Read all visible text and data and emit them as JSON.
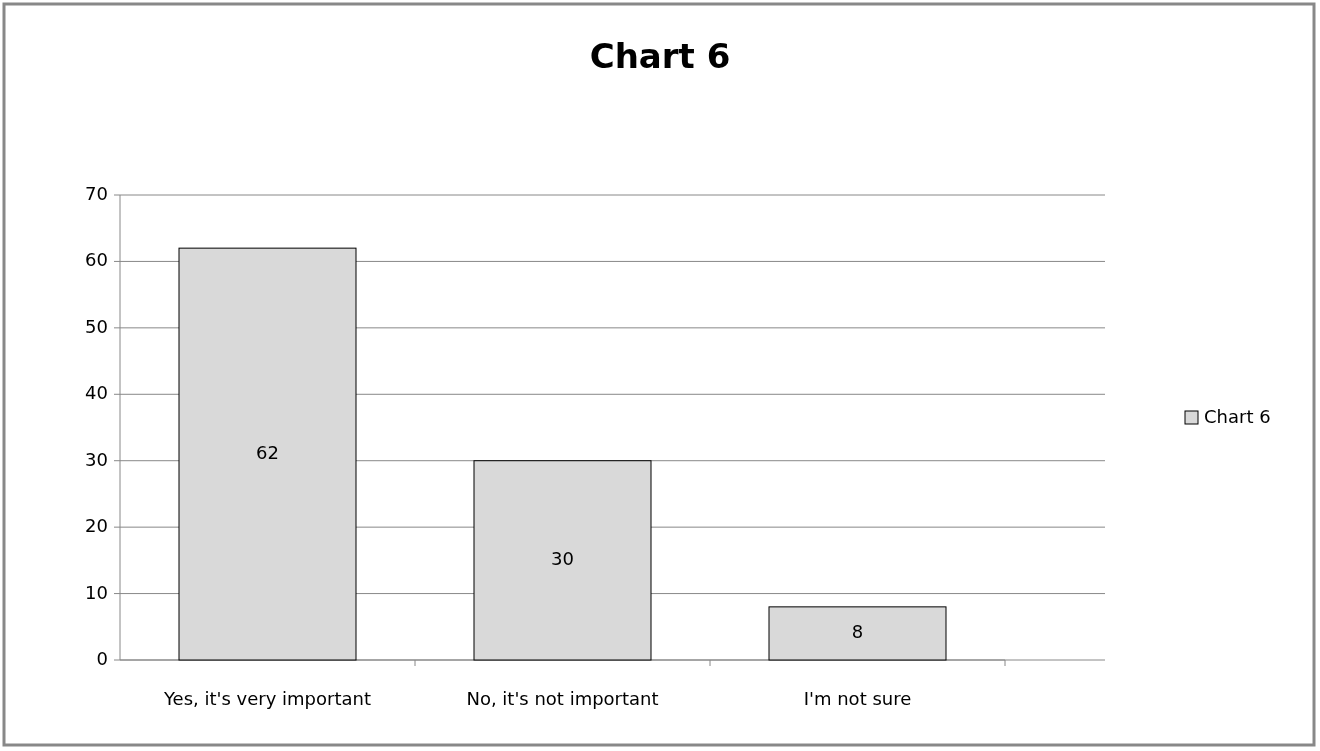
{
  "chart_data": {
    "type": "bar",
    "title": "Chart 6",
    "categories": [
      "Yes, it's very important",
      "No, it's not important",
      "I'm not sure"
    ],
    "series": [
      {
        "name": "Chart 6",
        "color": "#d9d9d9",
        "values": [
          62,
          30,
          8
        ]
      }
    ],
    "ylim": [
      0,
      70
    ],
    "yticks": [
      0,
      10,
      20,
      30,
      40,
      50,
      60,
      70
    ],
    "grid": "y",
    "legend": "right",
    "data_labels": true
  }
}
